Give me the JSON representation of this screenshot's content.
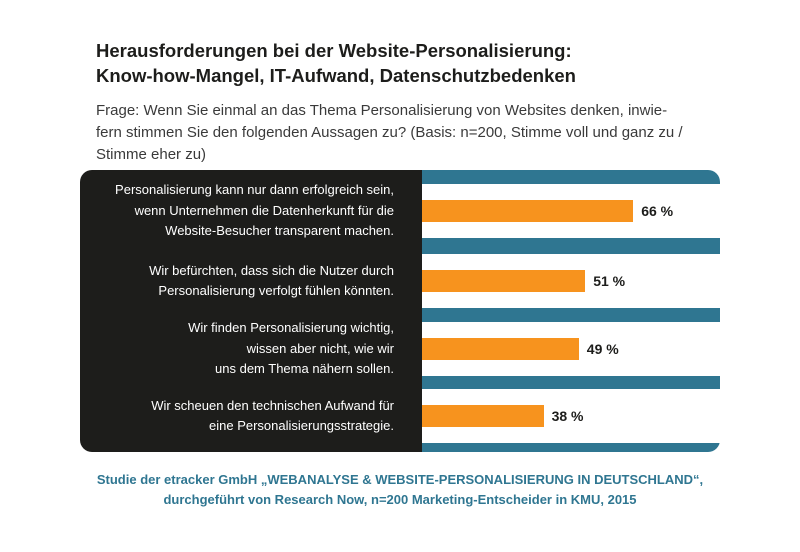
{
  "title": {
    "line1": "Herausforderungen bei der Website-Personalisierung:",
    "line2": "Know-how-Mangel, IT-Aufwand, Datenschutzbedenken"
  },
  "question": {
    "line1": "Frage: Wenn Sie einmal an das Thema Personalisierung von Websites denken, inwie-",
    "line2": "fern stimmen Sie den folgenden Aussagen zu? (Basis: n=200, Stimme voll und ganz zu /",
    "line3": "Stimme eher zu)"
  },
  "colors": {
    "bar": "#f7931e",
    "frame": "#2f7691",
    "label_panel": "#1d1d1b",
    "source_text": "#2f7691"
  },
  "chart_data": {
    "type": "bar",
    "orientation": "horizontal",
    "unit": "%",
    "xlim": [
      0,
      100
    ],
    "grid": false,
    "categories": [
      [
        "Personalisierung kann nur dann erfolgreich sein,",
        "wenn Unternehmen die Datenherkunft für die",
        "Website-Besucher transparent machen."
      ],
      [
        "Wir befürchten, dass sich die Nutzer durch",
        "Personalisierung verfolgt fühlen könnten."
      ],
      [
        "Wir finden Personalisierung wichtig,",
        "wissen aber nicht, wie wir",
        "uns dem Thema nähern sollen."
      ],
      [
        "Wir scheuen den technischen Aufwand für",
        "eine Personalisierungsstrategie."
      ]
    ],
    "values": [
      66,
      51,
      49,
      38
    ],
    "value_labels": [
      "66 %",
      "51 %",
      "49 %",
      "38 %"
    ]
  },
  "source": {
    "line1": "Studie der etracker GmbH „WEBANALYSE & WEBSITE-PERSONALISIERUNG IN DEUTSCHLAND“,",
    "line2": "durchgeführt von Research Now, n=200 Marketing-Entscheider in KMU, 2015"
  }
}
